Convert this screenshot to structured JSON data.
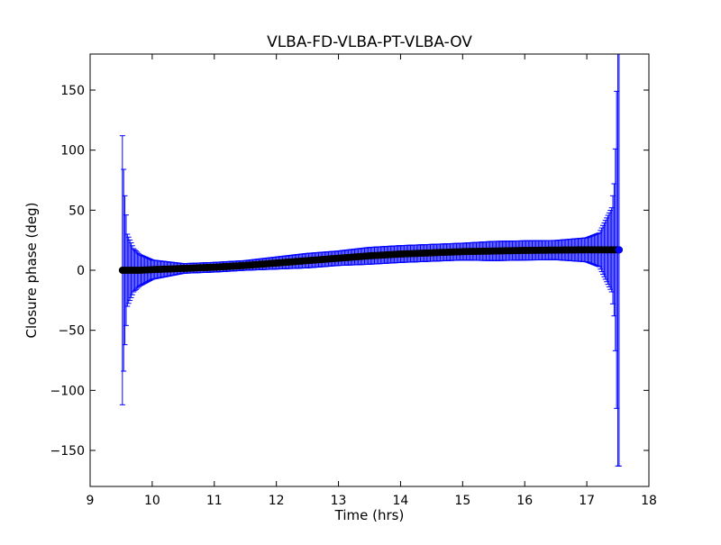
{
  "chart_data": {
    "type": "scatter",
    "title": "VLBA-FD-VLBA-PT-VLBA-OV",
    "xlabel": "Time (hrs)",
    "ylabel": "Closure phase (deg)",
    "xlim": [
      9,
      18
    ],
    "ylim": [
      -180,
      180
    ],
    "x_ticks": [
      9,
      10,
      11,
      12,
      13,
      14,
      15,
      16,
      17,
      18
    ],
    "y_ticks": [
      -150,
      -100,
      -50,
      0,
      50,
      100,
      150
    ],
    "x_tick_labels": [
      "9",
      "10",
      "11",
      "12",
      "13",
      "14",
      "15",
      "16",
      "17",
      "18"
    ],
    "y_tick_labels": [
      "−150",
      "−100",
      "−50",
      "0",
      "50",
      "100",
      "150"
    ],
    "grid": false,
    "legend": "none",
    "marker_color": "#000000",
    "errorbar_color": "#0000ff",
    "series": [
      {
        "x": [
          9.52,
          9.55,
          9.6,
          9.7,
          9.8,
          10.0,
          10.5,
          11.0,
          11.5,
          12.0,
          12.5,
          13.0,
          13.5,
          14.0,
          14.5,
          15.0,
          15.5,
          16.0,
          16.5,
          17.0,
          17.2,
          17.4,
          17.45,
          17.5,
          17.52
        ],
        "y": [
          0,
          0,
          0,
          0,
          0,
          0.5,
          1.5,
          2.5,
          4,
          6,
          8,
          10,
          12,
          13.5,
          14.5,
          15.5,
          16,
          16.5,
          16.8,
          17,
          17,
          17,
          17,
          17,
          17
        ],
        "yerr": [
          112,
          70,
          30,
          18,
          13,
          8,
          4,
          4,
          4,
          5,
          6,
          6,
          7,
          7,
          7,
          7,
          8,
          8,
          8,
          10,
          14,
          35,
          60,
          180,
          180
        ]
      }
    ]
  }
}
